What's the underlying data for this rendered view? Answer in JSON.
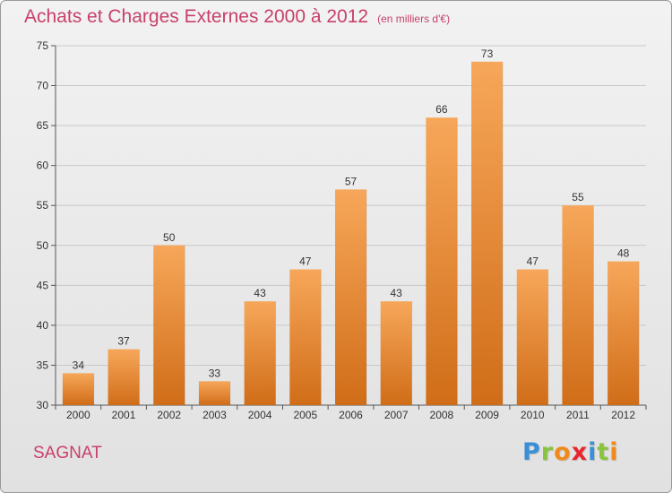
{
  "title": "Achats et Charges Externes 2000 à 2012",
  "subtitle": "(en milliers d'€)",
  "city": "SAGNAT",
  "logo": {
    "text": "Proxiti",
    "letters": [
      {
        "char": "P",
        "color": "#3a8fd6"
      },
      {
        "char": "r",
        "color": "#8ac43f"
      },
      {
        "char": "o",
        "color": "#f08a1c"
      },
      {
        "char": "x",
        "color": "#e8262f"
      },
      {
        "char": "i",
        "color": "#3a8fd6"
      },
      {
        "char": "t",
        "color": "#8ac43f"
      },
      {
        "char": "i",
        "color": "#f08a1c"
      }
    ]
  },
  "colors": {
    "text_accent": "#c8406a",
    "bar_top": "#f7a75a",
    "bar_bottom": "#d06d18",
    "grid": "#c8c8c8"
  },
  "chart_data": {
    "type": "bar",
    "title": "Achats et Charges Externes 2000 à 2012",
    "subtitle": "(en milliers d'€)",
    "categories": [
      "2000",
      "2001",
      "2002",
      "2003",
      "2004",
      "2005",
      "2006",
      "2007",
      "2008",
      "2009",
      "2010",
      "2011",
      "2012"
    ],
    "values": [
      34,
      37,
      50,
      33,
      43,
      47,
      57,
      43,
      66,
      73,
      47,
      55,
      48
    ],
    "ylim": [
      30,
      75
    ],
    "yticks": [
      30,
      35,
      40,
      45,
      50,
      55,
      60,
      65,
      70,
      75
    ],
    "grid": true,
    "data_labels": true
  }
}
